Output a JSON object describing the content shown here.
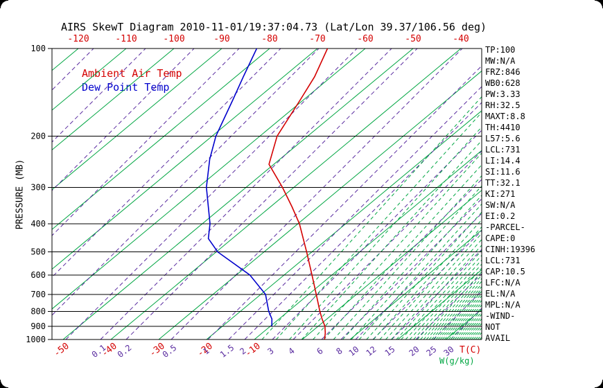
{
  "title": "AIRS SkewT Diagram 2010-11-01/19:37:04.73 (Lat/Lon 39.37/106.56 deg)",
  "legend": [
    {
      "label": "Ambient Air Temp",
      "color": "#d40000"
    },
    {
      "label": "Dew Point Temp",
      "color": "#0000cc"
    }
  ],
  "axes": {
    "pressure_axis_label": "PRESSURE (MB)",
    "pressure_ticks_mb": [
      100,
      200,
      300,
      400,
      500,
      600,
      700,
      800,
      900,
      1000
    ],
    "top_temperature_ticks_c": [
      -120,
      -110,
      -100,
      -90,
      -80,
      -70,
      -60,
      -50,
      -40
    ],
    "bottom_temperature_ticks_c": [
      -50,
      -40,
      -30,
      -20,
      -10
    ],
    "mixing_ratio_ticks_gkg": [
      0.1,
      0.2,
      0.5,
      1,
      1.5,
      2,
      3,
      4,
      6,
      8,
      10,
      12,
      15,
      20,
      25,
      30
    ],
    "temperature_unit_label": "T(C)",
    "mixing_ratio_unit_label": "W(g/kg)"
  },
  "stats_panel": [
    "TP:100",
    "MW:N/A",
    "FRZ:846",
    "WB0:628",
    "PW:3.33",
    "RH:32.5",
    "MAXT:8.8",
    "TH:4410",
    "L57:5.6",
    "LCL:731",
    "LI:14.4",
    "SI:11.6",
    "TT:32.1",
    "KI:271",
    "SW:N/A",
    "EI:0.2",
    "-PARCEL-",
    "CAPE:0",
    "CINH:19396",
    "LCL:731",
    "CAP:10.5",
    "LFC:N/A",
    "EL:N/A",
    "MPL:N/A",
    "-WIND-",
    "NOT",
    "AVAIL"
  ],
  "colors": {
    "temp_axis": "#d40000",
    "pressure_axis": "#000000",
    "isotherm_green": "#00a642",
    "mixing_purple": "#5a2ca0",
    "ambient_red": "#d40000",
    "dewpoint_blue": "#0000cc"
  },
  "chart_data": {
    "type": "line",
    "title": "AIRS SkewT Diagram 2010-11-01/19:37:04.73 (Lat/Lon 39.37/106.56 deg)",
    "x_axis": {
      "label": "T(C)",
      "top_ticks_c": [
        -120,
        -110,
        -100,
        -90,
        -80,
        -70,
        -60,
        -50,
        -40
      ],
      "bottom_ticks_c": [
        -50,
        -40,
        -30,
        -20,
        -10
      ]
    },
    "y_axis": {
      "label": "PRESSURE (MB)",
      "scale": "log",
      "range_mb": [
        100,
        1000
      ]
    },
    "legend_position": "top-left-inside",
    "grid": {
      "isotherms_c": {
        "min": -160,
        "max": 40,
        "step": 10,
        "color": "#00a642",
        "style": "solid"
      },
      "mixing_ratio_lines_gkg": [
        0.1,
        0.2,
        0.5,
        1,
        1.5,
        2,
        3,
        4,
        6,
        8,
        10,
        12,
        15,
        20,
        25,
        30
      ],
      "mixing_color": "#5a2ca0",
      "mixing_style": "dashed",
      "saturation_lines_color": "#00a642",
      "saturation_lines_style": "dashed",
      "isobars_mb": [
        100,
        200,
        300,
        400,
        500,
        600,
        700,
        800,
        900,
        1000
      ]
    },
    "series": [
      {
        "name": "Ambient Air Temp",
        "color": "#d40000",
        "points_p_t": [
          [
            1000,
            4.7
          ],
          [
            950,
            3.2
          ],
          [
            900,
            1.4
          ],
          [
            850,
            -1.0
          ],
          [
            800,
            -3.4
          ],
          [
            700,
            -8.4
          ],
          [
            600,
            -14.2
          ],
          [
            500,
            -21.1
          ],
          [
            400,
            -29.7
          ],
          [
            350,
            -35.5
          ],
          [
            300,
            -42.4
          ],
          [
            250,
            -51.0
          ],
          [
            200,
            -56.4
          ],
          [
            150,
            -60.7
          ],
          [
            125,
            -63.5
          ],
          [
            100,
            -67.9
          ]
        ]
      },
      {
        "name": "Dew Point Temp",
        "color": "#0000cc",
        "points_p_t": [
          [
            900,
            -9.7
          ],
          [
            850,
            -11.5
          ],
          [
            800,
            -14.1
          ],
          [
            700,
            -19.0
          ],
          [
            600,
            -27.2
          ],
          [
            500,
            -39.7
          ],
          [
            450,
            -45.0
          ],
          [
            400,
            -48.4
          ],
          [
            300,
            -58.3
          ],
          [
            240,
            -64.7
          ],
          [
            200,
            -69.2
          ],
          [
            150,
            -74.8
          ],
          [
            125,
            -78.4
          ],
          [
            100,
            -82.7
          ]
        ]
      }
    ]
  }
}
